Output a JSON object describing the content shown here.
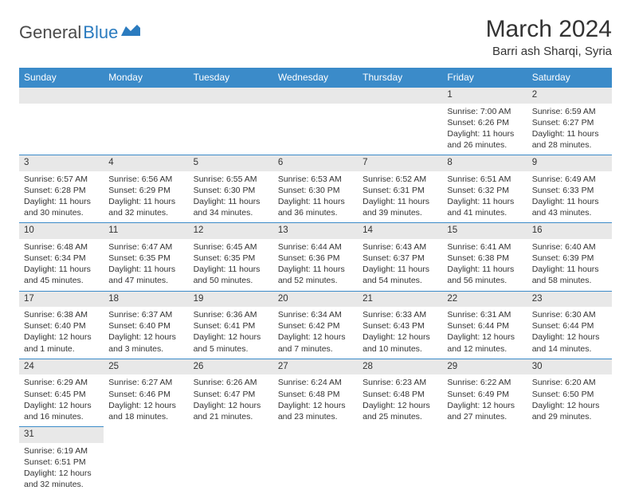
{
  "logo": {
    "part1": "General",
    "part2": "Blue"
  },
  "title": "March 2024",
  "location": "Barri ash Sharqi, Syria",
  "colors": {
    "headerBg": "#3b8bc9",
    "headerText": "#ffffff",
    "dayNumBg": "#e8e8e8",
    "border": "#3b8bc9",
    "text": "#333333",
    "logoDark": "#4a4a4a",
    "logoBlue": "#2b7bbf"
  },
  "dayNames": [
    "Sunday",
    "Monday",
    "Tuesday",
    "Wednesday",
    "Thursday",
    "Friday",
    "Saturday"
  ],
  "weeks": [
    [
      null,
      null,
      null,
      null,
      null,
      {
        "n": "1",
        "sr": "Sunrise: 7:00 AM",
        "ss": "Sunset: 6:26 PM",
        "dl": "Daylight: 11 hours and 26 minutes."
      },
      {
        "n": "2",
        "sr": "Sunrise: 6:59 AM",
        "ss": "Sunset: 6:27 PM",
        "dl": "Daylight: 11 hours and 28 minutes."
      }
    ],
    [
      {
        "n": "3",
        "sr": "Sunrise: 6:57 AM",
        "ss": "Sunset: 6:28 PM",
        "dl": "Daylight: 11 hours and 30 minutes."
      },
      {
        "n": "4",
        "sr": "Sunrise: 6:56 AM",
        "ss": "Sunset: 6:29 PM",
        "dl": "Daylight: 11 hours and 32 minutes."
      },
      {
        "n": "5",
        "sr": "Sunrise: 6:55 AM",
        "ss": "Sunset: 6:30 PM",
        "dl": "Daylight: 11 hours and 34 minutes."
      },
      {
        "n": "6",
        "sr": "Sunrise: 6:53 AM",
        "ss": "Sunset: 6:30 PM",
        "dl": "Daylight: 11 hours and 36 minutes."
      },
      {
        "n": "7",
        "sr": "Sunrise: 6:52 AM",
        "ss": "Sunset: 6:31 PM",
        "dl": "Daylight: 11 hours and 39 minutes."
      },
      {
        "n": "8",
        "sr": "Sunrise: 6:51 AM",
        "ss": "Sunset: 6:32 PM",
        "dl": "Daylight: 11 hours and 41 minutes."
      },
      {
        "n": "9",
        "sr": "Sunrise: 6:49 AM",
        "ss": "Sunset: 6:33 PM",
        "dl": "Daylight: 11 hours and 43 minutes."
      }
    ],
    [
      {
        "n": "10",
        "sr": "Sunrise: 6:48 AM",
        "ss": "Sunset: 6:34 PM",
        "dl": "Daylight: 11 hours and 45 minutes."
      },
      {
        "n": "11",
        "sr": "Sunrise: 6:47 AM",
        "ss": "Sunset: 6:35 PM",
        "dl": "Daylight: 11 hours and 47 minutes."
      },
      {
        "n": "12",
        "sr": "Sunrise: 6:45 AM",
        "ss": "Sunset: 6:35 PM",
        "dl": "Daylight: 11 hours and 50 minutes."
      },
      {
        "n": "13",
        "sr": "Sunrise: 6:44 AM",
        "ss": "Sunset: 6:36 PM",
        "dl": "Daylight: 11 hours and 52 minutes."
      },
      {
        "n": "14",
        "sr": "Sunrise: 6:43 AM",
        "ss": "Sunset: 6:37 PM",
        "dl": "Daylight: 11 hours and 54 minutes."
      },
      {
        "n": "15",
        "sr": "Sunrise: 6:41 AM",
        "ss": "Sunset: 6:38 PM",
        "dl": "Daylight: 11 hours and 56 minutes."
      },
      {
        "n": "16",
        "sr": "Sunrise: 6:40 AM",
        "ss": "Sunset: 6:39 PM",
        "dl": "Daylight: 11 hours and 58 minutes."
      }
    ],
    [
      {
        "n": "17",
        "sr": "Sunrise: 6:38 AM",
        "ss": "Sunset: 6:40 PM",
        "dl": "Daylight: 12 hours and 1 minute."
      },
      {
        "n": "18",
        "sr": "Sunrise: 6:37 AM",
        "ss": "Sunset: 6:40 PM",
        "dl": "Daylight: 12 hours and 3 minutes."
      },
      {
        "n": "19",
        "sr": "Sunrise: 6:36 AM",
        "ss": "Sunset: 6:41 PM",
        "dl": "Daylight: 12 hours and 5 minutes."
      },
      {
        "n": "20",
        "sr": "Sunrise: 6:34 AM",
        "ss": "Sunset: 6:42 PM",
        "dl": "Daylight: 12 hours and 7 minutes."
      },
      {
        "n": "21",
        "sr": "Sunrise: 6:33 AM",
        "ss": "Sunset: 6:43 PM",
        "dl": "Daylight: 12 hours and 10 minutes."
      },
      {
        "n": "22",
        "sr": "Sunrise: 6:31 AM",
        "ss": "Sunset: 6:44 PM",
        "dl": "Daylight: 12 hours and 12 minutes."
      },
      {
        "n": "23",
        "sr": "Sunrise: 6:30 AM",
        "ss": "Sunset: 6:44 PM",
        "dl": "Daylight: 12 hours and 14 minutes."
      }
    ],
    [
      {
        "n": "24",
        "sr": "Sunrise: 6:29 AM",
        "ss": "Sunset: 6:45 PM",
        "dl": "Daylight: 12 hours and 16 minutes."
      },
      {
        "n": "25",
        "sr": "Sunrise: 6:27 AM",
        "ss": "Sunset: 6:46 PM",
        "dl": "Daylight: 12 hours and 18 minutes."
      },
      {
        "n": "26",
        "sr": "Sunrise: 6:26 AM",
        "ss": "Sunset: 6:47 PM",
        "dl": "Daylight: 12 hours and 21 minutes."
      },
      {
        "n": "27",
        "sr": "Sunrise: 6:24 AM",
        "ss": "Sunset: 6:48 PM",
        "dl": "Daylight: 12 hours and 23 minutes."
      },
      {
        "n": "28",
        "sr": "Sunrise: 6:23 AM",
        "ss": "Sunset: 6:48 PM",
        "dl": "Daylight: 12 hours and 25 minutes."
      },
      {
        "n": "29",
        "sr": "Sunrise: 6:22 AM",
        "ss": "Sunset: 6:49 PM",
        "dl": "Daylight: 12 hours and 27 minutes."
      },
      {
        "n": "30",
        "sr": "Sunrise: 6:20 AM",
        "ss": "Sunset: 6:50 PM",
        "dl": "Daylight: 12 hours and 29 minutes."
      }
    ],
    [
      {
        "n": "31",
        "sr": "Sunrise: 6:19 AM",
        "ss": "Sunset: 6:51 PM",
        "dl": "Daylight: 12 hours and 32 minutes."
      },
      null,
      null,
      null,
      null,
      null,
      null
    ]
  ]
}
